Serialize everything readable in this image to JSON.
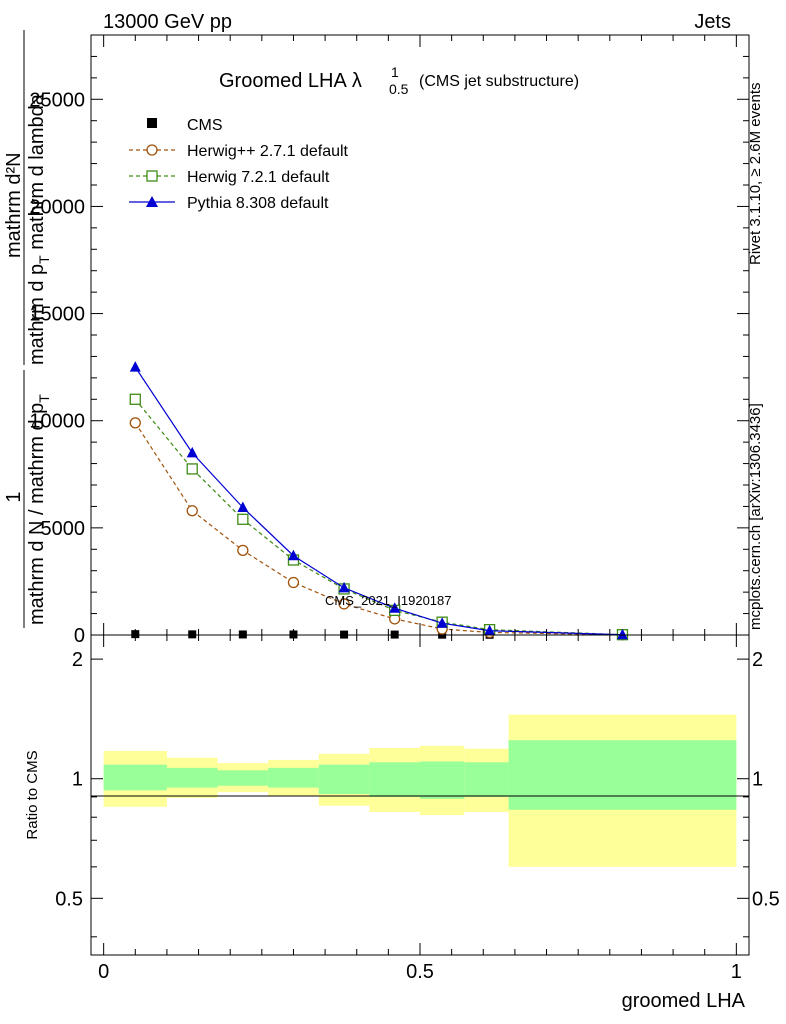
{
  "header": {
    "left": "13000 GeV pp",
    "right": "Jets"
  },
  "title": {
    "main": "Groomed LHA",
    "lambda": "λ",
    "sup": "1",
    "sub": "0.5",
    "note": "(CMS jet substructure)"
  },
  "watermark": "CMS_2021_I1920187",
  "side_labels": {
    "top": "Rivet 3.1.10, ≥ 2.6M events",
    "bottom": "mcplots.cern.ch [arXiv:1306.3436]"
  },
  "ylabel": {
    "numerator": "1",
    "denominator": "mathrm d N / mathrm d p",
    "denominator_sub": "T",
    "numerator2": "mathrm d²N",
    "denominator2": "mathrm d p",
    "denominator2_sub": "T",
    "denominator2_tail": " mathrm d lambda"
  },
  "colors": {
    "herwig_pp": "#a0520a",
    "herwig7": "#3c8c14",
    "pythia": "#0000d2",
    "band_inner": "#99ff99",
    "band_outer": "#ffff99"
  },
  "chart_data": [
    {
      "type": "line",
      "xlim": [
        -0.02,
        1.02
      ],
      "ylim": [
        0,
        28000
      ],
      "yticks": [
        0,
        5000,
        10000,
        15000,
        20000,
        25000
      ],
      "ytick_labels": [
        "0",
        "5000",
        "10000",
        "15000",
        "20000",
        "25000"
      ],
      "legend_placement": "top-left",
      "x": [
        0.05,
        0.14,
        0.22,
        0.3,
        0.38,
        0.46,
        0.535,
        0.61,
        0.82
      ],
      "series": [
        {
          "name": "CMS",
          "marker": "square-filled",
          "values": [
            40,
            30,
            25,
            25,
            20,
            20,
            15,
            10,
            5
          ]
        },
        {
          "name": "Herwig++ 2.7.1 default",
          "marker": "circle-open",
          "values": [
            9900,
            5800,
            3950,
            2450,
            1450,
            750,
            280,
            120,
            10
          ]
        },
        {
          "name": "Herwig 7.2.1 default",
          "marker": "square-open",
          "values": [
            11000,
            7750,
            5400,
            3500,
            2150,
            1150,
            600,
            250,
            15
          ]
        },
        {
          "name": "Pythia 8.308 default",
          "marker": "triangle-filled",
          "values": [
            12500,
            8500,
            5950,
            3700,
            2200,
            1250,
            550,
            200,
            10
          ]
        }
      ]
    },
    {
      "type": "area",
      "ylabel": "Ratio to CMS",
      "xlabel": "groomed LHA",
      "xlim": [
        -0.02,
        1.02
      ],
      "ylim": [
        0.36,
        2.3
      ],
      "yscale": "log",
      "xticks": [
        0,
        0.5,
        1
      ],
      "xtick_labels": [
        "0",
        "0.5",
        "1"
      ],
      "yticks": [
        0.5,
        1,
        2
      ],
      "ytick_labels": [
        "0.5",
        "1",
        "2"
      ],
      "bins": [
        {
          "x0": 0.0,
          "x1": 0.1,
          "inner": [
            0.935,
            1.085
          ],
          "outer": [
            0.85,
            1.175
          ]
        },
        {
          "x0": 0.1,
          "x1": 0.18,
          "inner": [
            0.95,
            1.065
          ],
          "outer": [
            0.895,
            1.13
          ]
        },
        {
          "x0": 0.18,
          "x1": 0.26,
          "inner": [
            0.96,
            1.05
          ],
          "outer": [
            0.925,
            1.095
          ]
        },
        {
          "x0": 0.26,
          "x1": 0.34,
          "inner": [
            0.95,
            1.065
          ],
          "outer": [
            0.905,
            1.115
          ]
        },
        {
          "x0": 0.34,
          "x1": 0.42,
          "inner": [
            0.915,
            1.085
          ],
          "outer": [
            0.855,
            1.155
          ]
        },
        {
          "x0": 0.42,
          "x1": 0.5,
          "inner": [
            0.9,
            1.1
          ],
          "outer": [
            0.825,
            1.195
          ]
        },
        {
          "x0": 0.5,
          "x1": 0.57,
          "inner": [
            0.89,
            1.105
          ],
          "outer": [
            0.81,
            1.21
          ]
        },
        {
          "x0": 0.57,
          "x1": 0.64,
          "inner": [
            0.9,
            1.1
          ],
          "outer": [
            0.825,
            1.19
          ]
        },
        {
          "x0": 0.64,
          "x1": 1.0,
          "inner": [
            0.835,
            1.25
          ],
          "outer": [
            0.6,
            1.45
          ]
        }
      ]
    }
  ]
}
